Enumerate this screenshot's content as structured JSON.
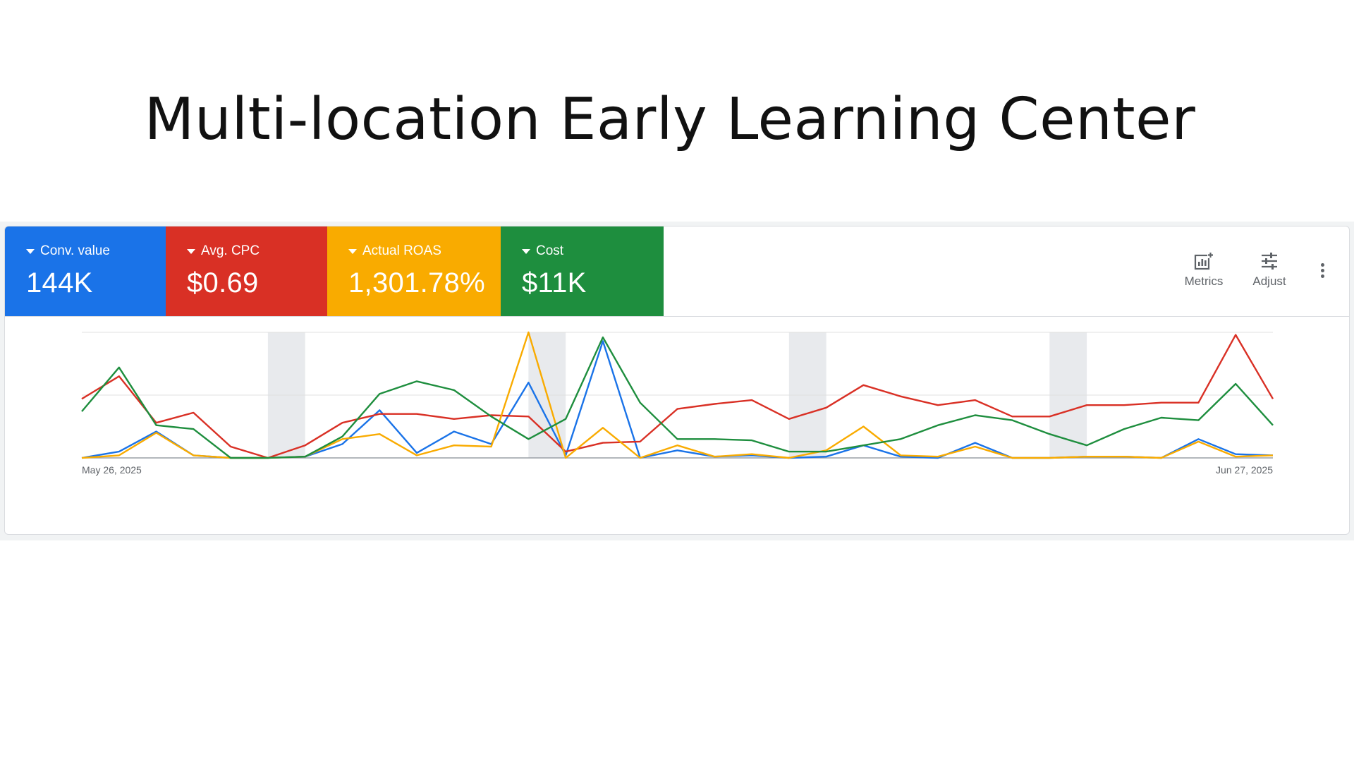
{
  "page": {
    "title": "Multi-location Early Learning Center"
  },
  "metrics": [
    {
      "label": "Conv. value",
      "value": "144K",
      "color": "#1a73e8"
    },
    {
      "label": "Avg. CPC",
      "value": "$0.69",
      "color": "#d93025"
    },
    {
      "label": "Actual ROAS",
      "value": "1,301.78%",
      "color": "#f9ab00"
    },
    {
      "label": "Cost",
      "value": "$11K",
      "color": "#1e8e3e"
    }
  ],
  "toolbar": {
    "metrics_label": "Metrics",
    "adjust_label": "Adjust",
    "more_icon": "more-vert-icon"
  },
  "chart_data": {
    "type": "line",
    "x_start_label": "May 26, 2025",
    "x_end_label": "Jun 27, 2025",
    "x": [
      "May 26",
      "May 27",
      "May 28",
      "May 29",
      "May 30",
      "May 31",
      "Jun 1",
      "Jun 2",
      "Jun 3",
      "Jun 4",
      "Jun 5",
      "Jun 6",
      "Jun 7",
      "Jun 8",
      "Jun 9",
      "Jun 10",
      "Jun 11",
      "Jun 12",
      "Jun 13",
      "Jun 14",
      "Jun 15",
      "Jun 16",
      "Jun 17",
      "Jun 18",
      "Jun 19",
      "Jun 20",
      "Jun 21",
      "Jun 22",
      "Jun 23",
      "Jun 24",
      "Jun 25",
      "Jun 26",
      "Jun 27"
    ],
    "weekend_shading": [
      "May 31",
      "Jun 7",
      "Jun 14",
      "Jun 21"
    ],
    "grid": true,
    "y_range": [
      0,
      1
    ],
    "series": [
      {
        "metric": "Conv. value",
        "color": "#1a73e8",
        "values": [
          0.0,
          0.05,
          0.21,
          0.02,
          0.0,
          0.0,
          0.01,
          0.11,
          0.38,
          0.04,
          0.21,
          0.11,
          0.6,
          0.02,
          0.93,
          0.0,
          0.06,
          0.01,
          0.02,
          0.0,
          0.01,
          0.1,
          0.01,
          0.0,
          0.12,
          0.0,
          0.0,
          0.01,
          0.01,
          0.0,
          0.15,
          0.03,
          0.02
        ]
      },
      {
        "metric": "Avg. CPC",
        "color": "#d93025",
        "values": [
          0.47,
          0.65,
          0.28,
          0.36,
          0.09,
          0.0,
          0.1,
          0.28,
          0.35,
          0.35,
          0.31,
          0.34,
          0.33,
          0.05,
          0.12,
          0.13,
          0.39,
          0.43,
          0.46,
          0.31,
          0.4,
          0.58,
          0.49,
          0.42,
          0.46,
          0.33,
          0.33,
          0.42,
          0.42,
          0.44,
          0.44,
          0.98,
          0.47
        ]
      },
      {
        "metric": "Actual ROAS",
        "color": "#f9ab00",
        "values": [
          0.0,
          0.02,
          0.2,
          0.02,
          0.0,
          0.0,
          0.01,
          0.15,
          0.19,
          0.02,
          0.1,
          0.09,
          1.0,
          0.0,
          0.24,
          0.0,
          0.1,
          0.01,
          0.03,
          0.0,
          0.06,
          0.25,
          0.02,
          0.01,
          0.09,
          0.0,
          0.0,
          0.01,
          0.01,
          0.0,
          0.13,
          0.01,
          0.02
        ]
      },
      {
        "metric": "Cost",
        "color": "#1e8e3e",
        "values": [
          0.37,
          0.72,
          0.26,
          0.23,
          0.0,
          0.0,
          0.01,
          0.17,
          0.51,
          0.61,
          0.54,
          0.33,
          0.15,
          0.31,
          0.96,
          0.44,
          0.15,
          0.15,
          0.14,
          0.05,
          0.05,
          0.1,
          0.15,
          0.26,
          0.34,
          0.3,
          0.19,
          0.1,
          0.23,
          0.32,
          0.3,
          0.59,
          0.26
        ]
      }
    ]
  }
}
